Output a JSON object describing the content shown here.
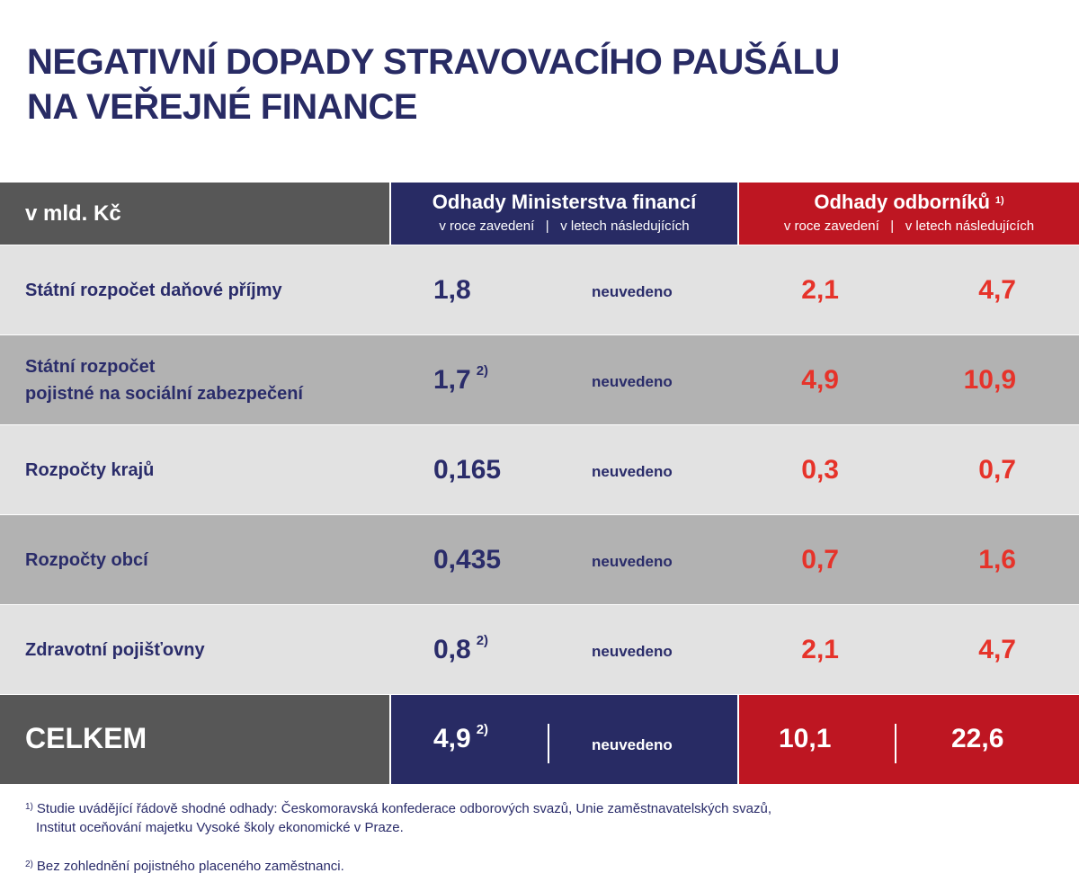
{
  "title": [
    "NEGATIVNÍ DOPADY STRAVOVACÍHO PAUŠÁLU",
    "NA VEŘEJNÉ FINANCE"
  ],
  "header": {
    "unit": "v mld. Kč",
    "mf": {
      "title": "Odhady Ministerstva financí",
      "sub1": "v roce zavedení",
      "sep": "|",
      "sub2": "v letech následujících"
    },
    "experts": {
      "title": "Odhady odborníků",
      "note": "1)",
      "sub1": "v roce zavedení",
      "sep": "|",
      "sub2": "v letech následujících"
    }
  },
  "rows": [
    {
      "label": "Státní rozpočet daňové příjmy",
      "mf_first": "1,8",
      "mf_note": "",
      "mf_next": "neuvedeno",
      "ex_first": "2,1",
      "ex_next": "4,7"
    },
    {
      "label": "Státní rozpočet\npojistné na sociální zabezpečení",
      "mf_first": "1,7",
      "mf_note": "2)",
      "mf_next": "neuvedeno",
      "ex_first": "4,9",
      "ex_next": "10,9"
    },
    {
      "label": "Rozpočty krajů",
      "mf_first": "0,165",
      "mf_note": "",
      "mf_next": "neuvedeno",
      "ex_first": "0,3",
      "ex_next": "0,7"
    },
    {
      "label": "Rozpočty obcí",
      "mf_first": "0,435",
      "mf_note": "",
      "mf_next": "neuvedeno",
      "ex_first": "0,7",
      "ex_next": "1,6"
    },
    {
      "label": "Zdravotní pojišťovny",
      "mf_first": "0,8",
      "mf_note": "2)",
      "mf_next": "neuvedeno",
      "ex_first": "2,1",
      "ex_next": "4,7"
    }
  ],
  "total": {
    "label": "CELKEM",
    "mf_first": "4,9",
    "mf_note": "2)",
    "mf_next": "neuvedeno",
    "ex_first": "10,1",
    "ex_next": "22,6"
  },
  "footnotes": [
    {
      "mark": "1)",
      "lines": [
        "Studie uvádějící řádově shodné odhady: Českomoravská konfederace odborových svazů, Unie zaměstnavatelských svazů,",
        "Institut oceňování majetku Vysoké školy ekonomické v Praze."
      ]
    },
    {
      "mark": "2)",
      "lines": [
        "Bez zohlednění pojistného placeného zaměstnanci."
      ]
    }
  ],
  "colors": {
    "navy": "#282b64",
    "red": "#be1622",
    "dark": "#575757",
    "rowLight": "#e2e2e2",
    "rowDark": "#b2b2b2",
    "valueRed": "#e6332a"
  }
}
